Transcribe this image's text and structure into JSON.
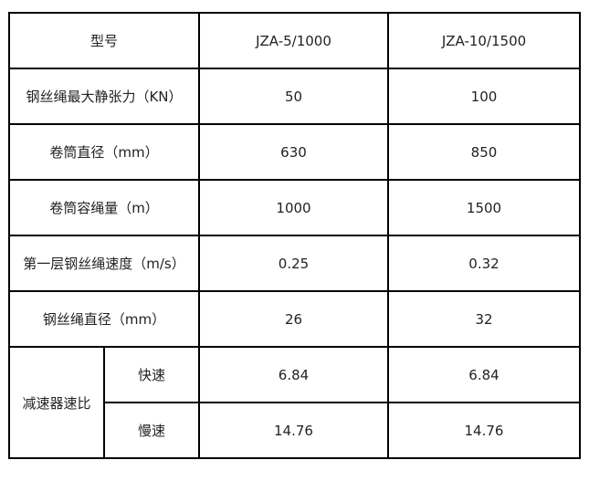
{
  "table": {
    "header": {
      "label": "型号",
      "models": [
        "JZA-5/1000",
        "JZA-10/1500"
      ]
    },
    "rows": [
      {
        "label": "钢丝绳最大静张力（KN）",
        "values": [
          "50",
          "100"
        ]
      },
      {
        "label": "卷筒直径（mm）",
        "values": [
          "630",
          "850"
        ]
      },
      {
        "label": "卷筒容绳量（m）",
        "values": [
          "1000",
          "1500"
        ]
      },
      {
        "label": "第一层钢丝绳速度（m/s）",
        "values": [
          "0.25",
          "0.32"
        ]
      },
      {
        "label": "钢丝绳直径（mm）",
        "values": [
          "26",
          "32"
        ]
      }
    ],
    "ratio": {
      "label": "减速器速比",
      "fast": {
        "label": "快速",
        "values": [
          "6.84",
          "6.84"
        ]
      },
      "slow": {
        "label": "慢速",
        "values": [
          "14.76",
          "14.76"
        ]
      }
    }
  }
}
